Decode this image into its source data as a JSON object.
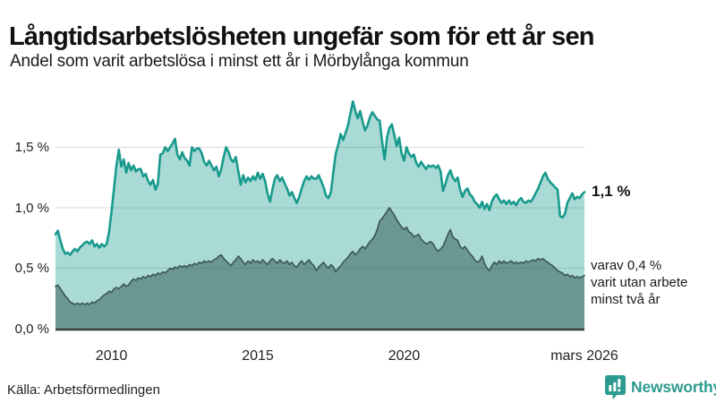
{
  "header": {
    "title": "Långtidsarbetslösheten ungefär som för ett år sen",
    "subtitle": "Andel som varit arbetslösa i minst ett år i Mörbylånga kommun"
  },
  "chart_data": {
    "type": "area",
    "title": "Långtidsarbetslösheten ungefär som för ett år sen",
    "subtitle": "Andel som varit arbetslösa i minst ett år i Mörbylånga kommun",
    "x_start": "2008-02",
    "x_end": "2026-03",
    "x_unit": "month",
    "y_unit": "%",
    "ylim": [
      0,
      1.95
    ],
    "grid": "horizontal",
    "legend": "none",
    "yticks": [
      {
        "value": 0.0,
        "label": "0,0 %"
      },
      {
        "value": 0.5,
        "label": "0,5 %"
      },
      {
        "value": 1.0,
        "label": "1,0 %"
      },
      {
        "value": 1.5,
        "label": "1,5 %"
      }
    ],
    "xticks": [
      {
        "year": 2010,
        "label": "2010"
      },
      {
        "year": 2015,
        "label": "2015"
      },
      {
        "year": 2020,
        "label": "2020"
      },
      {
        "year": 2026.2,
        "label": "mars 2026"
      }
    ],
    "series": [
      {
        "name": "Andel arbetslösa minst ett år",
        "color": "#189a8c",
        "fill": "rgba(24,154,140,0.37)",
        "end_value": 1.1,
        "values": [
          0.78,
          0.81,
          0.73,
          0.66,
          0.62,
          0.63,
          0.61,
          0.64,
          0.66,
          0.64,
          0.67,
          0.69,
          0.71,
          0.72,
          0.7,
          0.73,
          0.68,
          0.7,
          0.67,
          0.7,
          0.68,
          0.7,
          0.8,
          0.97,
          1.16,
          1.35,
          1.48,
          1.34,
          1.4,
          1.29,
          1.37,
          1.31,
          1.35,
          1.3,
          1.32,
          1.32,
          1.26,
          1.28,
          1.22,
          1.19,
          1.23,
          1.15,
          1.2,
          1.44,
          1.45,
          1.5,
          1.47,
          1.5,
          1.53,
          1.57,
          1.44,
          1.4,
          1.46,
          1.41,
          1.39,
          1.35,
          1.5,
          1.47,
          1.49,
          1.49,
          1.45,
          1.38,
          1.35,
          1.39,
          1.35,
          1.31,
          1.34,
          1.26,
          1.32,
          1.42,
          1.5,
          1.46,
          1.4,
          1.38,
          1.42,
          1.3,
          1.19,
          1.27,
          1.21,
          1.25,
          1.22,
          1.26,
          1.23,
          1.29,
          1.24,
          1.28,
          1.22,
          1.12,
          1.05,
          1.15,
          1.24,
          1.27,
          1.22,
          1.25,
          1.2,
          1.16,
          1.1,
          1.13,
          1.08,
          1.04,
          1.09,
          1.16,
          1.22,
          1.26,
          1.23,
          1.26,
          1.24,
          1.24,
          1.27,
          1.22,
          1.17,
          1.1,
          1.08,
          1.13,
          1.3,
          1.45,
          1.52,
          1.61,
          1.56,
          1.62,
          1.68,
          1.78,
          1.88,
          1.8,
          1.74,
          1.8,
          1.71,
          1.64,
          1.68,
          1.75,
          1.79,
          1.76,
          1.73,
          1.72,
          1.55,
          1.4,
          1.58,
          1.66,
          1.69,
          1.6,
          1.51,
          1.58,
          1.45,
          1.39,
          1.5,
          1.45,
          1.42,
          1.44,
          1.37,
          1.34,
          1.38,
          1.35,
          1.32,
          1.35,
          1.34,
          1.35,
          1.33,
          1.35,
          1.3,
          1.14,
          1.2,
          1.27,
          1.31,
          1.25,
          1.22,
          1.25,
          1.15,
          1.09,
          1.14,
          1.16,
          1.11,
          1.09,
          1.05,
          1.03,
          1.0,
          1.05,
          0.99,
          1.03,
          0.98,
          1.05,
          1.09,
          1.11,
          1.07,
          1.04,
          1.06,
          1.03,
          1.06,
          1.03,
          1.05,
          1.02,
          1.06,
          1.08,
          1.05,
          1.04,
          1.06,
          1.05,
          1.08,
          1.12,
          1.16,
          1.21,
          1.26,
          1.29,
          1.24,
          1.21,
          1.19,
          1.17,
          1.15,
          0.93,
          0.92,
          0.95,
          1.04,
          1.08,
          1.12,
          1.07,
          1.09,
          1.08,
          1.11,
          1.13
        ]
      },
      {
        "name": "varav utan arbete minst två år",
        "color": "#3e5a56",
        "fill": "rgba(47,90,85,0.52)",
        "end_value": 0.4,
        "values": [
          0.35,
          0.36,
          0.33,
          0.3,
          0.27,
          0.25,
          0.22,
          0.21,
          0.2,
          0.21,
          0.2,
          0.21,
          0.2,
          0.21,
          0.2,
          0.22,
          0.21,
          0.23,
          0.24,
          0.26,
          0.28,
          0.29,
          0.31,
          0.3,
          0.33,
          0.34,
          0.33,
          0.35,
          0.37,
          0.35,
          0.36,
          0.39,
          0.41,
          0.4,
          0.42,
          0.41,
          0.43,
          0.42,
          0.44,
          0.43,
          0.45,
          0.44,
          0.46,
          0.45,
          0.47,
          0.46,
          0.48,
          0.5,
          0.49,
          0.51,
          0.5,
          0.52,
          0.51,
          0.52,
          0.51,
          0.53,
          0.52,
          0.54,
          0.53,
          0.55,
          0.54,
          0.56,
          0.55,
          0.56,
          0.55,
          0.57,
          0.58,
          0.6,
          0.61,
          0.58,
          0.56,
          0.54,
          0.52,
          0.55,
          0.57,
          0.6,
          0.58,
          0.55,
          0.53,
          0.56,
          0.54,
          0.57,
          0.55,
          0.56,
          0.54,
          0.57,
          0.55,
          0.53,
          0.56,
          0.58,
          0.56,
          0.54,
          0.57,
          0.55,
          0.54,
          0.56,
          0.53,
          0.55,
          0.52,
          0.51,
          0.54,
          0.56,
          0.53,
          0.55,
          0.57,
          0.54,
          0.52,
          0.48,
          0.51,
          0.53,
          0.55,
          0.52,
          0.5,
          0.53,
          0.51,
          0.47,
          0.5,
          0.52,
          0.55,
          0.57,
          0.59,
          0.62,
          0.64,
          0.61,
          0.63,
          0.66,
          0.68,
          0.66,
          0.69,
          0.72,
          0.74,
          0.77,
          0.82,
          0.89,
          0.91,
          0.94,
          0.97,
          1.0,
          0.97,
          0.94,
          0.9,
          0.87,
          0.84,
          0.82,
          0.84,
          0.8,
          0.79,
          0.76,
          0.77,
          0.78,
          0.74,
          0.72,
          0.7,
          0.71,
          0.72,
          0.7,
          0.66,
          0.64,
          0.66,
          0.68,
          0.73,
          0.78,
          0.82,
          0.76,
          0.74,
          0.73,
          0.68,
          0.66,
          0.68,
          0.65,
          0.62,
          0.6,
          0.57,
          0.55,
          0.56,
          0.6,
          0.54,
          0.5,
          0.48,
          0.52,
          0.55,
          0.53,
          0.56,
          0.54,
          0.56,
          0.54,
          0.55,
          0.56,
          0.54,
          0.55,
          0.54,
          0.55,
          0.54,
          0.56,
          0.55,
          0.56,
          0.57,
          0.56,
          0.58,
          0.57,
          0.58,
          0.56,
          0.55,
          0.53,
          0.52,
          0.5,
          0.48,
          0.47,
          0.46,
          0.44,
          0.45,
          0.43,
          0.44,
          0.42,
          0.43,
          0.42,
          0.43,
          0.44
        ]
      }
    ],
    "annotations": {
      "end_value_label": "1,1 %",
      "sub_label_line1": "varav 0,4 %",
      "sub_label_line2": "varit utan arbete",
      "sub_label_line3": "minst två år"
    }
  },
  "footer": {
    "source": "Källa: Arbetsförmedlingen",
    "brand": "Newsworthy",
    "brand_color": "#2d9c8e"
  }
}
